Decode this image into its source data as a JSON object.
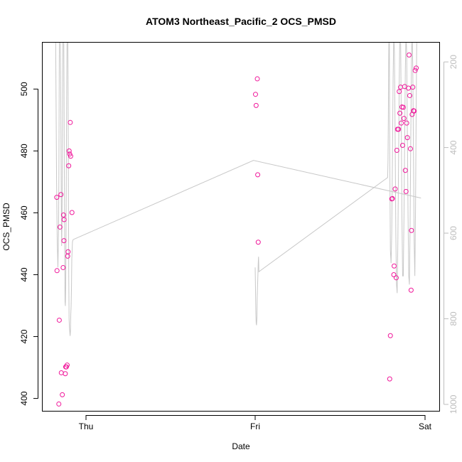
{
  "chart_data": {
    "type": "scatter",
    "title": "ATOM3 Northeast_Pacific_2 OCS_PMSD",
    "xlabel": "Date",
    "ylabel": "OCS_PMSD",
    "x_units": "days (0 = Thu 00:00)",
    "xlim": [
      -1.03,
      1.03
    ],
    "ylim": [
      396,
      515
    ],
    "x_ticks": [
      {
        "value": 0,
        "label": "Thu"
      },
      {
        "value": 0.5,
        "label": "Fri"
      },
      {
        "value": 1,
        "label": "Sat"
      }
    ],
    "y_ticks": [
      400,
      420,
      440,
      460,
      480,
      500
    ],
    "right_axis": {
      "label": "",
      "ylim": [
        1015,
        155
      ],
      "ticks": [
        200,
        400,
        600,
        800,
        1000
      ],
      "color": "#bdbdbd"
    },
    "grid": false,
    "series": [
      {
        "kind": "points",
        "color": "#f0179a",
        "axis": "left",
        "points": [
          [
            -0.0864,
            465.0
          ],
          [
            -0.0857,
            441.3
          ],
          [
            -0.0803,
            398.2
          ],
          [
            -0.079,
            425.3
          ],
          [
            -0.0769,
            455.4
          ],
          [
            -0.0741,
            465.9
          ],
          [
            -0.073,
            408.3
          ],
          [
            -0.07,
            401.2
          ],
          [
            -0.0676,
            442.3
          ],
          [
            -0.0664,
            459.3
          ],
          [
            -0.0652,
            451.0
          ],
          [
            -0.0647,
            457.8
          ],
          [
            -0.0612,
            408.0
          ],
          [
            -0.06,
            410.2
          ],
          [
            -0.0581,
            410.2
          ],
          [
            -0.0558,
            410.8
          ],
          [
            -0.0542,
            446.0
          ],
          [
            -0.053,
            447.4
          ],
          [
            -0.0511,
            475.2
          ],
          [
            -0.0498,
            480.0
          ],
          [
            -0.0482,
            479.0
          ],
          [
            -0.0465,
            489.2
          ],
          [
            -0.0453,
            478.3
          ],
          [
            -0.0415,
            460.1
          ],
          [
            0.501,
            498.3
          ],
          [
            0.5028,
            494.7
          ],
          [
            0.5063,
            503.3
          ],
          [
            0.5075,
            472.3
          ],
          [
            0.509,
            450.5
          ],
          [
            0.896,
            406.3
          ],
          [
            0.898,
            420.3
          ],
          [
            0.902,
            464.5
          ],
          [
            0.904,
            464.6
          ],
          [
            0.908,
            440.0
          ],
          [
            0.9091,
            442.8
          ],
          [
            0.912,
            467.7
          ],
          [
            0.9151,
            439.0
          ],
          [
            0.917,
            480.2
          ],
          [
            0.919,
            487.0
          ],
          [
            0.922,
            487.0
          ],
          [
            0.924,
            499.2
          ],
          [
            0.926,
            492.2
          ],
          [
            0.928,
            500.6
          ],
          [
            0.93,
            489.0
          ],
          [
            0.932,
            494.2
          ],
          [
            0.934,
            481.8
          ],
          [
            0.936,
            494.1
          ],
          [
            0.938,
            490.5
          ],
          [
            0.94,
            500.8
          ],
          [
            0.942,
            473.7
          ],
          [
            0.944,
            466.9
          ],
          [
            0.946,
            489.0
          ],
          [
            0.948,
            484.3
          ],
          [
            0.951,
            500.3
          ],
          [
            0.953,
            511.0
          ],
          [
            0.955,
            497.9
          ],
          [
            0.957,
            480.7
          ],
          [
            0.959,
            435.0
          ],
          [
            0.96,
            454.3
          ],
          [
            0.962,
            491.8
          ],
          [
            0.964,
            500.6
          ],
          [
            0.966,
            493.0
          ],
          [
            0.968,
            492.9
          ],
          [
            0.971,
            506.0
          ],
          [
            0.974,
            506.8
          ]
        ]
      },
      {
        "kind": "line",
        "color": "#c8c8c8",
        "axis": "right",
        "points": [
          [
            -0.09,
            110
          ],
          [
            -0.089,
            230
          ],
          [
            -0.087,
            480
          ],
          [
            -0.085,
            620
          ],
          [
            -0.083,
            680
          ],
          [
            -0.081,
            590
          ],
          [
            -0.08,
            430
          ],
          [
            -0.079,
            200
          ],
          [
            -0.078,
            80
          ],
          [
            -0.077,
            60
          ],
          [
            -0.076,
            100
          ],
          [
            -0.075,
            220
          ],
          [
            -0.074,
            380
          ],
          [
            -0.073,
            530
          ],
          [
            -0.072,
            630
          ],
          [
            -0.071,
            580
          ],
          [
            -0.07,
            440
          ],
          [
            -0.069,
            270
          ],
          [
            -0.068,
            110
          ],
          [
            -0.067,
            50
          ],
          [
            -0.066,
            90
          ],
          [
            -0.065,
            250
          ],
          [
            -0.064,
            480
          ],
          [
            -0.063,
            640
          ],
          [
            -0.062,
            760
          ],
          [
            -0.061,
            770
          ],
          [
            -0.06,
            720
          ],
          [
            -0.059,
            600
          ],
          [
            -0.058,
            430
          ],
          [
            -0.057,
            260
          ],
          [
            -0.056,
            120
          ],
          [
            -0.055,
            60
          ],
          [
            -0.054,
            100
          ],
          [
            -0.053,
            260
          ],
          [
            -0.052,
            480
          ],
          [
            -0.051,
            700
          ],
          [
            -0.05,
            800
          ],
          [
            -0.049,
            820
          ],
          [
            -0.048,
            830
          ],
          [
            -0.047,
            840
          ],
          [
            -0.046,
            830
          ],
          [
            -0.045,
            790
          ],
          [
            -0.044,
            770
          ],
          [
            -0.043,
            730
          ],
          [
            -0.042,
            660
          ],
          [
            -0.041,
            640
          ],
          [
            -0.04,
            620
          ],
          [
            -0.038,
            615
          ],
          [
            0.495,
            430
          ],
          [
            0.988,
            518
          ]
        ]
      },
      {
        "kind": "line",
        "color": "#c8c8c8",
        "axis": "right",
        "points": [
          [
            0.5,
            680
          ],
          [
            0.501,
            730
          ],
          [
            0.502,
            790
          ],
          [
            0.503,
            810
          ],
          [
            0.504,
            815
          ],
          [
            0.505,
            800
          ],
          [
            0.506,
            750
          ],
          [
            0.508,
            700
          ],
          [
            0.509,
            670
          ],
          [
            0.51,
            655
          ],
          [
            0.511,
            690
          ],
          [
            0.89,
            470
          ],
          [
            0.891,
            430
          ],
          [
            0.892,
            330
          ],
          [
            0.893,
            200
          ],
          [
            0.894,
            110
          ],
          [
            0.895,
            160
          ],
          [
            0.896,
            400
          ],
          [
            0.898,
            640
          ],
          [
            0.9,
            670
          ],
          [
            0.902,
            600
          ],
          [
            0.904,
            430
          ],
          [
            0.906,
            240
          ],
          [
            0.908,
            130
          ],
          [
            0.91,
            180
          ],
          [
            0.912,
            380
          ],
          [
            0.914,
            600
          ],
          [
            0.916,
            720
          ],
          [
            0.918,
            740
          ],
          [
            0.92,
            620
          ],
          [
            0.922,
            440
          ],
          [
            0.924,
            250
          ],
          [
            0.926,
            120
          ],
          [
            0.928,
            130
          ],
          [
            0.93,
            330
          ],
          [
            0.932,
            560
          ],
          [
            0.934,
            700
          ],
          [
            0.936,
            700
          ],
          [
            0.938,
            560
          ],
          [
            0.94,
            380
          ],
          [
            0.942,
            220
          ],
          [
            0.944,
            130
          ],
          [
            0.946,
            180
          ],
          [
            0.948,
            370
          ],
          [
            0.95,
            560
          ],
          [
            0.952,
            700
          ],
          [
            0.954,
            720
          ],
          [
            0.956,
            580
          ],
          [
            0.958,
            380
          ],
          [
            0.96,
            200
          ],
          [
            0.962,
            120
          ],
          [
            0.964,
            220
          ],
          [
            0.966,
            420
          ],
          [
            0.968,
            620
          ],
          [
            0.97,
            700
          ],
          [
            0.972,
            540
          ],
          [
            0.974,
            300
          ],
          [
            0.976,
            110
          ]
        ]
      }
    ]
  }
}
